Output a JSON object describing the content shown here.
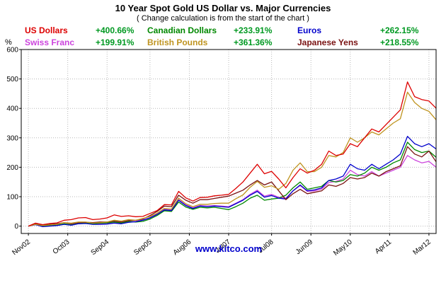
{
  "title": "10 Year Spot Gold US Dollar vs. Major Currencies",
  "subtitle": "( Change calculation is from the start of the chart )",
  "watermark": "www.kitco.com",
  "y_axis_unit": "%",
  "colors": {
    "change_green": "#009922",
    "grid": "#b8b8b8",
    "axis": "#000000",
    "watermark_blue": "#0000cc"
  },
  "legend": [
    {
      "label": "US Dollars",
      "change": "+400.66%",
      "color": "#dd0000"
    },
    {
      "label": "Canadian Dollars",
      "change": "+233.91%",
      "color": "#008800"
    },
    {
      "label": "Euros",
      "change": "+262.15%",
      "color": "#0000cc"
    },
    {
      "label": "Swiss Franc",
      "change": "+199.91%",
      "color": "#cc44dd"
    },
    {
      "label": "British Pounds",
      "change": "+361.36%",
      "color": "#bf9420"
    },
    {
      "label": "Japanese Yens",
      "change": "+218.55%",
      "color": "#7a1212"
    }
  ],
  "chart_data": {
    "type": "line",
    "title": "10 Year Spot Gold US Dollar vs. Major Currencies",
    "xlabel": "",
    "ylabel": "%",
    "ylim": [
      -25,
      600
    ],
    "yticks": [
      0,
      100,
      200,
      300,
      400,
      500,
      600
    ],
    "grid": "dotted",
    "legend_position": "top",
    "x_start_month": 2,
    "x_step_months": 2,
    "x_total_months": 116,
    "xticks": [
      {
        "label": "Nov02",
        "month": 2
      },
      {
        "label": "Oct03",
        "month": 13
      },
      {
        "label": "Sep04",
        "month": 24
      },
      {
        "label": "Sep05",
        "month": 36
      },
      {
        "label": "Aug06",
        "month": 47
      },
      {
        "label": "Jul07",
        "month": 58
      },
      {
        "label": "Jul08",
        "month": 70
      },
      {
        "label": "Jun09",
        "month": 81
      },
      {
        "label": "May10",
        "month": 92
      },
      {
        "label": "Apr11",
        "month": 103
      },
      {
        "label": "Mar12",
        "month": 114
      }
    ],
    "series": [
      {
        "id": "swiss-franc",
        "name": "Swiss Franc",
        "change": "+199.91%",
        "color": "#cc44dd",
        "values": [
          0,
          5,
          -1,
          1,
          3,
          7,
          4,
          9,
          10,
          7,
          7,
          8,
          11,
          9,
          14,
          16,
          21,
          29,
          41,
          57,
          55,
          90,
          72,
          62,
          70,
          68,
          70,
          68,
          66,
          78,
          90,
          108,
          122,
          102,
          108,
          98,
          95,
          120,
          138,
          118,
          120,
          126,
          148,
          152,
          160,
          190,
          175,
          170,
          185,
          170,
          180,
          190,
          200,
          240,
          225,
          215,
          220,
          199.91
        ]
      },
      {
        "id": "canadian-dollars",
        "name": "Canadian Dollars",
        "change": "+233.91%",
        "color": "#008800",
        "values": [
          0,
          6,
          0,
          1,
          3,
          8,
          4,
          9,
          10,
          8,
          10,
          11,
          14,
          11,
          16,
          14,
          16,
          24,
          36,
          52,
          50,
          82,
          65,
          57,
          64,
          62,
          64,
          60,
          56,
          66,
          78,
          95,
          105,
          88,
          92,
          95,
          105,
          130,
          150,
          125,
          130,
          135,
          155,
          150,
          155,
          175,
          170,
          180,
          200,
          190,
          200,
          215,
          225,
          285,
          260,
          250,
          255,
          233.91
        ]
      },
      {
        "id": "euros",
        "name": "Euros",
        "change": "+262.15%",
        "color": "#0000cc",
        "values": [
          0,
          5,
          -2,
          0,
          2,
          6,
          3,
          8,
          9,
          6,
          6,
          7,
          10,
          8,
          13,
          15,
          20,
          28,
          40,
          55,
          53,
          88,
          70,
          60,
          68,
          66,
          68,
          66,
          64,
          76,
          88,
          105,
          118,
          98,
          104,
          95,
          92,
          120,
          140,
          120,
          123,
          130,
          155,
          160,
          170,
          210,
          195,
          190,
          210,
          195,
          210,
          225,
          245,
          305,
          280,
          270,
          280,
          262.15
        ]
      },
      {
        "id": "japanese-yens",
        "name": "Japanese Yens",
        "change": "+218.55%",
        "color": "#7a1212",
        "values": [
          0,
          7,
          3,
          6,
          8,
          12,
          8,
          12,
          13,
          12,
          14,
          14,
          17,
          14,
          19,
          20,
          24,
          36,
          50,
          68,
          66,
          105,
          88,
          78,
          90,
          90,
          94,
          98,
          102,
          112,
          122,
          140,
          155,
          140,
          150,
          120,
          90,
          110,
          125,
          110,
          115,
          120,
          140,
          135,
          145,
          165,
          160,
          165,
          180,
          170,
          185,
          195,
          205,
          270,
          245,
          235,
          255,
          218.55
        ]
      },
      {
        "id": "british-pounds",
        "name": "British Pounds",
        "change": "+361.36%",
        "color": "#bf9420",
        "values": [
          0,
          6,
          2,
          4,
          6,
          12,
          10,
          14,
          14,
          10,
          12,
          14,
          20,
          17,
          22,
          20,
          26,
          33,
          44,
          60,
          58,
          95,
          76,
          66,
          74,
          74,
          77,
          78,
          78,
          93,
          106,
          132,
          152,
          132,
          137,
          125,
          145,
          190,
          215,
          185,
          185,
          200,
          240,
          235,
          250,
          300,
          285,
          300,
          320,
          310,
          330,
          350,
          365,
          455,
          420,
          400,
          390,
          361.36
        ]
      },
      {
        "id": "us-dollars",
        "name": "US Dollars",
        "change": "+400.66%",
        "color": "#dd0000",
        "values": [
          0,
          10,
          5,
          9,
          11,
          20,
          22,
          28,
          29,
          22,
          24,
          28,
          38,
          33,
          35,
          32,
          33,
          43,
          53,
          73,
          72,
          118,
          96,
          85,
          97,
          98,
          103,
          105,
          108,
          128,
          150,
          180,
          210,
          178,
          186,
          160,
          130,
          165,
          195,
          180,
          190,
          210,
          255,
          240,
          245,
          280,
          270,
          300,
          330,
          320,
          345,
          370,
          395,
          490,
          440,
          430,
          425,
          400.66
        ]
      }
    ]
  }
}
